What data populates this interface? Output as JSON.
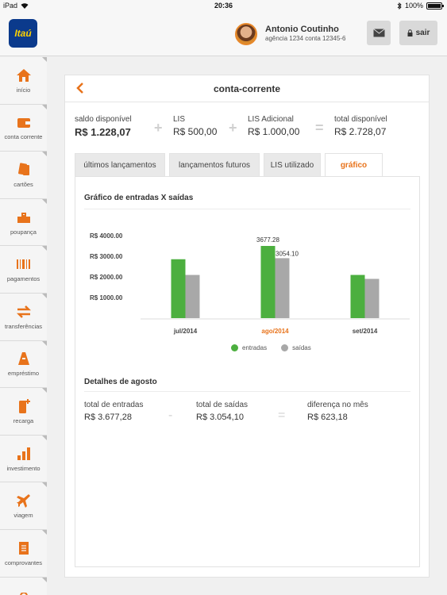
{
  "status_bar": {
    "device": "iPad",
    "time": "20:36",
    "battery": "100%"
  },
  "header": {
    "logo_text": "Itaú",
    "user_name": "Antonio Coutinho",
    "account_info": "agência 1234  conta 12345-6",
    "messages_icon": "envelope-icon",
    "exit_label": "sair",
    "exit_icon": "lock-icon"
  },
  "sidebar": {
    "items": [
      {
        "label": "início",
        "icon": "home-icon"
      },
      {
        "label": "conta corrente",
        "icon": "wallet-icon"
      },
      {
        "label": "cartões",
        "icon": "cards-icon"
      },
      {
        "label": "poupança",
        "icon": "piggy-icon"
      },
      {
        "label": "pagamentos",
        "icon": "barcode-icon"
      },
      {
        "label": "transferências",
        "icon": "transfer-icon"
      },
      {
        "label": "empréstimo",
        "icon": "loan-icon"
      },
      {
        "label": "recarga",
        "icon": "phone-recharge-icon"
      },
      {
        "label": "investimento",
        "icon": "bar-chart-icon"
      },
      {
        "label": "viagem",
        "icon": "airplane-icon"
      },
      {
        "label": "comprovantes",
        "icon": "receipt-icon"
      }
    ]
  },
  "panel": {
    "title": "conta-corrente",
    "balances": [
      {
        "label": "saldo disponível",
        "value": "R$ 1.228,07"
      },
      {
        "label": "LIS",
        "value": "R$ 500,00"
      },
      {
        "label": "LIS Adicional",
        "value": "R$ 1.000,00"
      },
      {
        "label": "total disponível",
        "value": "R$ 2.728,07"
      }
    ],
    "operators": [
      "+",
      "+",
      "="
    ],
    "tabs": [
      {
        "label": "últimos lançamentos",
        "active": false
      },
      {
        "label": "lançamentos futuros",
        "active": false
      },
      {
        "label": "LIS utilizado",
        "active": false
      },
      {
        "label": "gráfico",
        "active": true
      }
    ],
    "chart_section_title": "Gráfico de entradas X saídas",
    "details_title": "Detalhes de agosto",
    "details": [
      {
        "label": "total de entradas",
        "value": "R$ 3.677,28"
      },
      {
        "label": "total de saídas",
        "value": "R$ 3.054,10"
      },
      {
        "label": "diferença no mês",
        "value": "R$ 623,18"
      }
    ],
    "details_operators": [
      "-",
      "="
    ]
  },
  "colors": {
    "accent": "#e8731b",
    "entradas": "#4caf3f",
    "saidas": "#a8a8a8",
    "brand": "#0b3a8c"
  },
  "chart_data": {
    "type": "bar",
    "title": "Gráfico de entradas X saídas",
    "categories": [
      "jul/2014",
      "ago/2014",
      "set/2014"
    ],
    "highlight_category": "ago/2014",
    "series": [
      {
        "name": "entradas",
        "color": "#4caf3f",
        "values": [
          3000,
          3677.28,
          2200
        ]
      },
      {
        "name": "saídas",
        "color": "#a8a8a8",
        "values": [
          2200,
          3054.1,
          2000
        ]
      }
    ],
    "y_ticks": [
      "R$ 4000.00",
      "R$ 3000.00",
      "R$ 2000.00",
      "R$ 1000.00"
    ],
    "y_tick_values": [
      4000,
      3000,
      2000,
      1000
    ],
    "data_labels": [
      "3677.28",
      "3054.10"
    ],
    "ylim": [
      0,
      4000
    ],
    "legend_position": "bottom"
  }
}
